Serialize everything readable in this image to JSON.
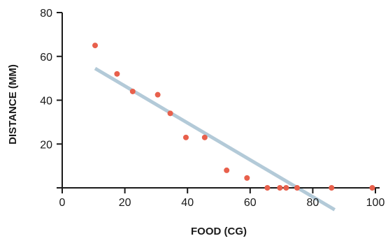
{
  "chart_data": {
    "type": "scatter",
    "xlabel": "FOOD (CG)",
    "ylabel": "DISTANCE (MM)",
    "xlim": [
      0,
      100
    ],
    "ylim": [
      0,
      80
    ],
    "x_ticks": [
      0,
      20,
      40,
      60,
      80,
      100
    ],
    "y_ticks": [
      20,
      40,
      60,
      80
    ],
    "grid": false,
    "legend": "none",
    "point_color": "#e8604c",
    "trend_color": "#b3cad8",
    "axis_color": "#1a1a1a",
    "series": [
      {
        "points": [
          [
            10.5,
            65
          ],
          [
            17.5,
            52
          ],
          [
            22.5,
            44
          ],
          [
            30.5,
            42.5
          ],
          [
            34.5,
            34
          ],
          [
            39.5,
            23
          ],
          [
            45.5,
            23
          ],
          [
            52.5,
            8
          ],
          [
            59,
            4.5
          ],
          [
            65.5,
            0
          ],
          [
            69.5,
            0
          ],
          [
            71.5,
            0
          ],
          [
            75,
            0
          ],
          [
            86,
            0
          ],
          [
            99,
            0
          ]
        ]
      }
    ],
    "trendline": {
      "x": [
        10.5,
        87
      ],
      "y": [
        54.5,
        -10
      ]
    }
  }
}
